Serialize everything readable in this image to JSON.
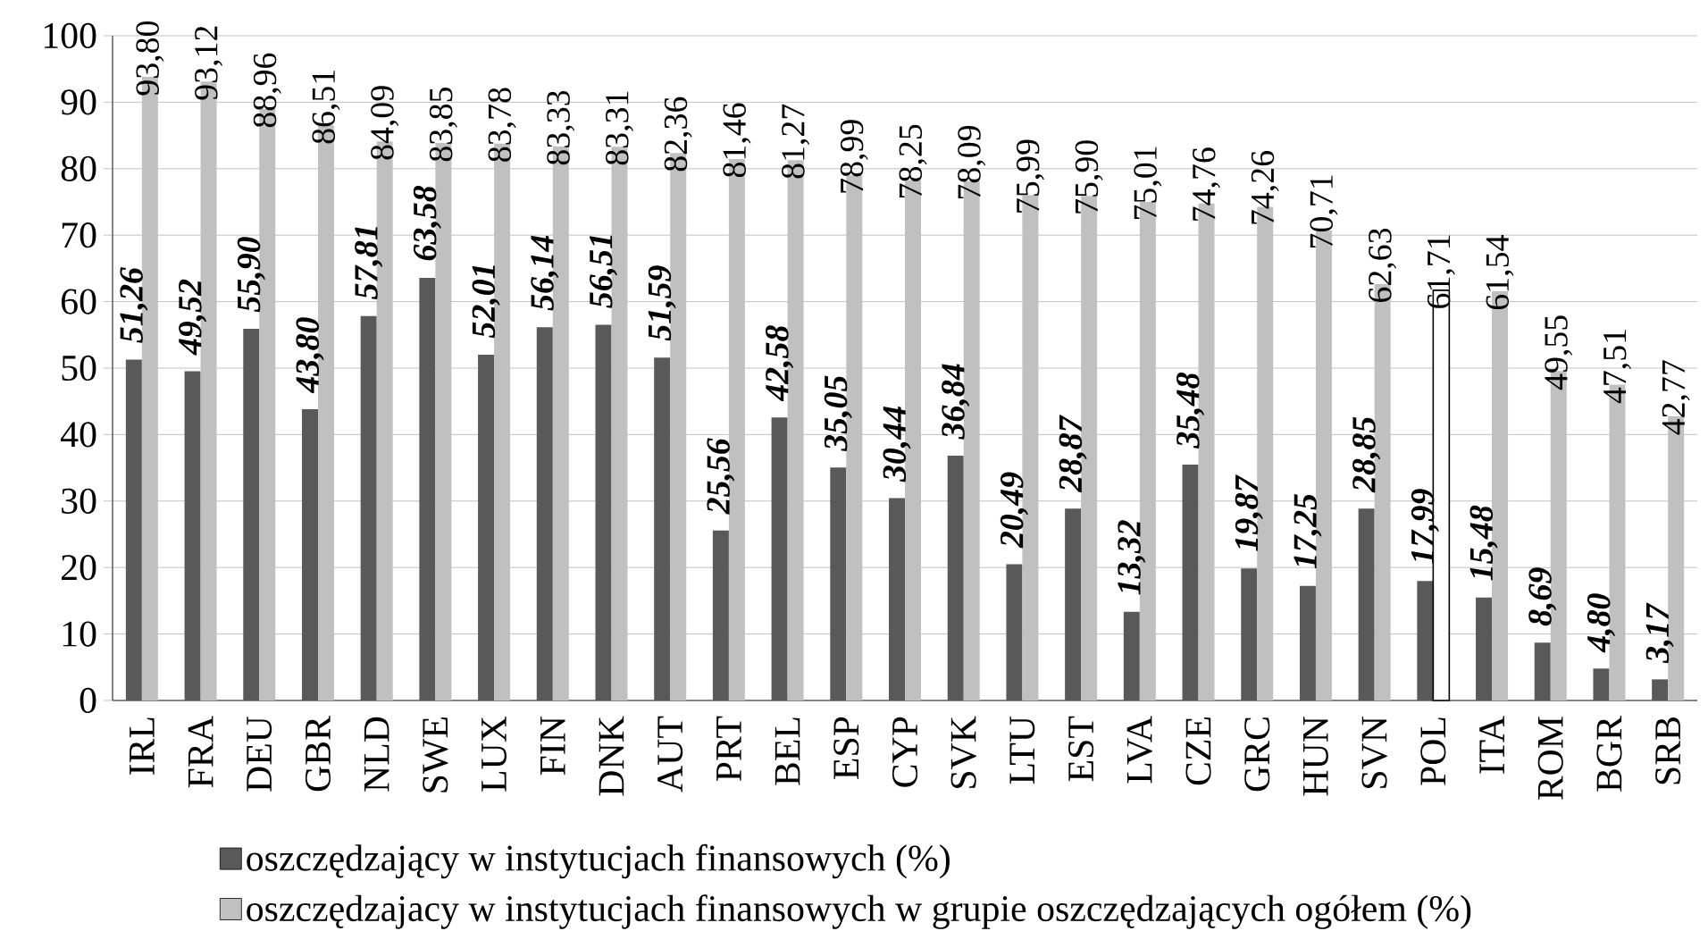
{
  "chart_data": {
    "type": "bar",
    "categories": [
      "IRL",
      "FRA",
      "DEU",
      "GBR",
      "NLD",
      "SWE",
      "LUX",
      "FIN",
      "DNK",
      "AUT",
      "PRT",
      "BEL",
      "ESP",
      "CYP",
      "SVK",
      "LTU",
      "EST",
      "LVA",
      "CZE",
      "GRC",
      "HUN",
      "SVN",
      "POL",
      "ITA",
      "ROM",
      "BGR",
      "SRB"
    ],
    "series": [
      {
        "name": "oszczędzający w instytucjach finansowych (%)",
        "color": "#595959",
        "values": [
          51.26,
          49.52,
          55.9,
          43.8,
          57.81,
          63.58,
          52.01,
          56.14,
          56.51,
          51.59,
          25.56,
          42.58,
          35.05,
          30.44,
          36.84,
          20.49,
          28.87,
          13.32,
          35.48,
          19.87,
          17.25,
          28.85,
          17.99,
          15.48,
          8.69,
          4.8,
          3.17
        ],
        "value_labels": [
          "51,26",
          "49,52",
          "55,90",
          "43,80",
          "57,81",
          "63,58",
          "52,01",
          "56,14",
          "56,51",
          "51,59",
          "25,56",
          "42,58",
          "35,05",
          "30,44",
          "36,84",
          "20,49",
          "28,87",
          "13,32",
          "35,48",
          "19,87",
          "17,25",
          "28,85",
          "17,99",
          "15,48",
          "8,69",
          "4,80",
          "3,17"
        ]
      },
      {
        "name": "oszczędzajacy w instytucjach finansowych w grupie oszczędzających ogółem (%)",
        "color": "#c0c0c0",
        "colors": [
          "#c0c0c0",
          "#c0c0c0",
          "#c0c0c0",
          "#c0c0c0",
          "#c0c0c0",
          "#c0c0c0",
          "#c0c0c0",
          "#c0c0c0",
          "#c0c0c0",
          "#c0c0c0",
          "#c0c0c0",
          "#c0c0c0",
          "#c0c0c0",
          "#c0c0c0",
          "#c0c0c0",
          "#c0c0c0",
          "#c0c0c0",
          "#c0c0c0",
          "#c0c0c0",
          "#c0c0c0",
          "#c0c0c0",
          "#c0c0c0",
          "#ffffff",
          "#c0c0c0",
          "#c0c0c0",
          "#c0c0c0",
          "#c0c0c0"
        ],
        "values": [
          93.8,
          93.12,
          88.96,
          86.51,
          84.09,
          83.85,
          83.78,
          83.33,
          83.31,
          82.36,
          81.46,
          81.27,
          78.99,
          78.25,
          78.09,
          75.99,
          75.9,
          75.01,
          74.76,
          74.26,
          70.71,
          62.63,
          61.71,
          61.54,
          49.55,
          47.51,
          42.77
        ],
        "value_labels": [
          "93,80",
          "93,12",
          "88,96",
          "86,51",
          "84,09",
          "83,85",
          "83,78",
          "83,33",
          "83,31",
          "82,36",
          "81,46",
          "81,27",
          "78,99",
          "78,25",
          "78,09",
          "75,99",
          "75,90",
          "75,01",
          "74,76",
          "74,26",
          "70,71",
          "62,63",
          "61,71",
          "61,54",
          "49,55",
          "47,51",
          "42,77"
        ]
      }
    ],
    "ylim": [
      0,
      100
    ],
    "yticks": [
      0,
      10,
      20,
      30,
      40,
      50,
      60,
      70,
      80,
      90,
      100
    ],
    "grid": "y",
    "legend": "bottom"
  }
}
